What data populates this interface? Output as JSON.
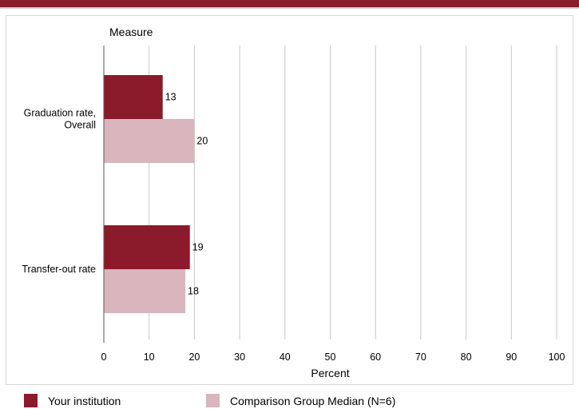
{
  "chart_data": {
    "type": "bar",
    "orientation": "horizontal",
    "title": "",
    "ylabel": "Measure",
    "xlabel": "Percent",
    "categories": [
      "Graduation rate, Overall",
      "Transfer-out rate"
    ],
    "category_lines": [
      [
        "Graduation rate,",
        "Overall"
      ],
      [
        "Transfer-out rate"
      ]
    ],
    "series": [
      {
        "name": "Your institution",
        "values": [
          13,
          19
        ],
        "color": "#8b1a2b"
      },
      {
        "name": "Comparison Group Median (N=6)",
        "values": [
          20,
          18
        ],
        "color": "#d9b5bd"
      }
    ],
    "xlim": [
      0,
      100
    ],
    "xticks": [
      "0",
      "10",
      "20",
      "30",
      "40",
      "50",
      "60",
      "70",
      "80",
      "90",
      "100"
    ],
    "grid": true,
    "legend_position": "bottom"
  },
  "colors": {
    "accent": "#8b1a2b",
    "comparison": "#d9b5bd",
    "grid": "#c8c8c8"
  }
}
